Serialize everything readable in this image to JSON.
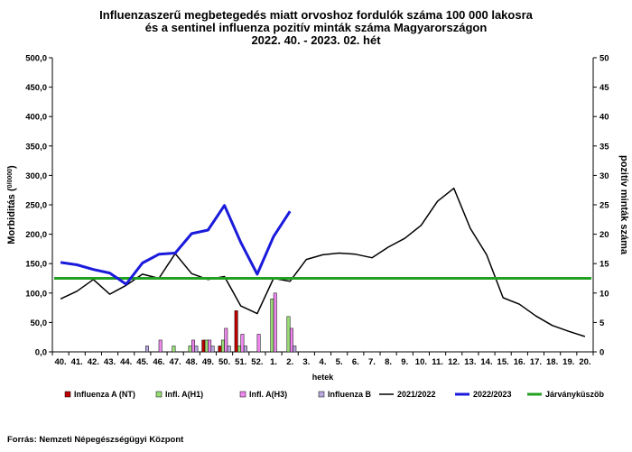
{
  "chart_data": {
    "type": "bar+line",
    "title_lines": [
      "Influenzaszerű megbetegedés miatt orvoshoz fordulók száma 100 000 lakosra",
      "és a sentinel influenza pozitív minták száma Magyarországon",
      "2022. 40. - 2023. 02. hét"
    ],
    "xlabel": "hetek",
    "ylabel_left": "Morbiditás (",
    "ylabel_left_unit": "0/0000",
    "ylabel_left_close": ")",
    "ylabel_right": "pozitív minták száma",
    "categories": [
      "40.",
      "41.",
      "42.",
      "43.",
      "44.",
      "45.",
      "46.",
      "47.",
      "48.",
      "49.",
      "50.",
      "51.",
      "52.",
      "1.",
      "2.",
      "3.",
      "4.",
      "5.",
      "6.",
      "7.",
      "8.",
      "9.",
      "10.",
      "11.",
      "12.",
      "13.",
      "14.",
      "15.",
      "16.",
      "17.",
      "18.",
      "19.",
      "20."
    ],
    "left_ticks": [
      "0,0",
      "50,0",
      "100,0",
      "150,0",
      "200,0",
      "250,0",
      "300,0",
      "350,0",
      "400,0",
      "450,0",
      "500,0"
    ],
    "right_ticks": [
      "0",
      "5",
      "10",
      "15",
      "20",
      "25",
      "30",
      "35",
      "40",
      "45",
      "50"
    ],
    "ylim_left": [
      0,
      500
    ],
    "ylim_right": [
      0,
      50
    ],
    "bar_series": [
      {
        "name": "Influenza A (NT)",
        "color": "#c00000",
        "values": [
          0,
          0,
          0,
          0,
          0,
          0,
          0,
          0,
          0,
          2,
          1,
          7,
          0,
          0,
          0
        ]
      },
      {
        "name": "Infl. A(H1)",
        "color": "#99dd77",
        "values": [
          0,
          0,
          0,
          0,
          0,
          0,
          0,
          1,
          1,
          2,
          2,
          1,
          0,
          9,
          6
        ]
      },
      {
        "name": "Infl. A(H3)",
        "color": "#ee88ee",
        "values": [
          0,
          0,
          0,
          0,
          0,
          0,
          2,
          0,
          2,
          2,
          4,
          3,
          3,
          10,
          4
        ]
      },
      {
        "name": "Influenza B",
        "color": "#b8a8dd",
        "values": [
          0,
          0,
          0,
          0,
          0,
          1,
          0,
          0,
          1,
          1,
          1,
          1,
          0,
          0,
          1
        ]
      }
    ],
    "line_series": [
      {
        "name": "2021/2022",
        "color": "#000000",
        "width": 1.5,
        "values": [
          90,
          103,
          123,
          98,
          113,
          132,
          125,
          167,
          133,
          123,
          128,
          78,
          65,
          125,
          120,
          157,
          165,
          168,
          166,
          160,
          178,
          193,
          215,
          256,
          278,
          210,
          165,
          92,
          81,
          61,
          45,
          35,
          26
        ]
      },
      {
        "name": "2022/2023",
        "color": "#1a1adc",
        "width": 3,
        "values": [
          152,
          148,
          140,
          134,
          115,
          151,
          166,
          168,
          201,
          207,
          249,
          186,
          132,
          196,
          239
        ]
      },
      {
        "name": "Járványküszöb",
        "color": "#22a022",
        "width": 3,
        "values": [
          125,
          125,
          125,
          125,
          125,
          125,
          125,
          125,
          125,
          125,
          125,
          125,
          125,
          125,
          125,
          125,
          125,
          125,
          125,
          125,
          125,
          125,
          125,
          125,
          125,
          125,
          125,
          125,
          125,
          125,
          125,
          125,
          125
        ]
      }
    ],
    "legend_order": [
      "Influenza A (NT)",
      "Infl. A(H1)",
      "Infl. A(H3)",
      "Influenza B",
      "2021/2022",
      "2022/2023",
      "Járványküszöb"
    ],
    "legend_placement": "bottom",
    "grid": false
  },
  "source": "Forrás: Nemzeti Népegészségügyi Központ"
}
